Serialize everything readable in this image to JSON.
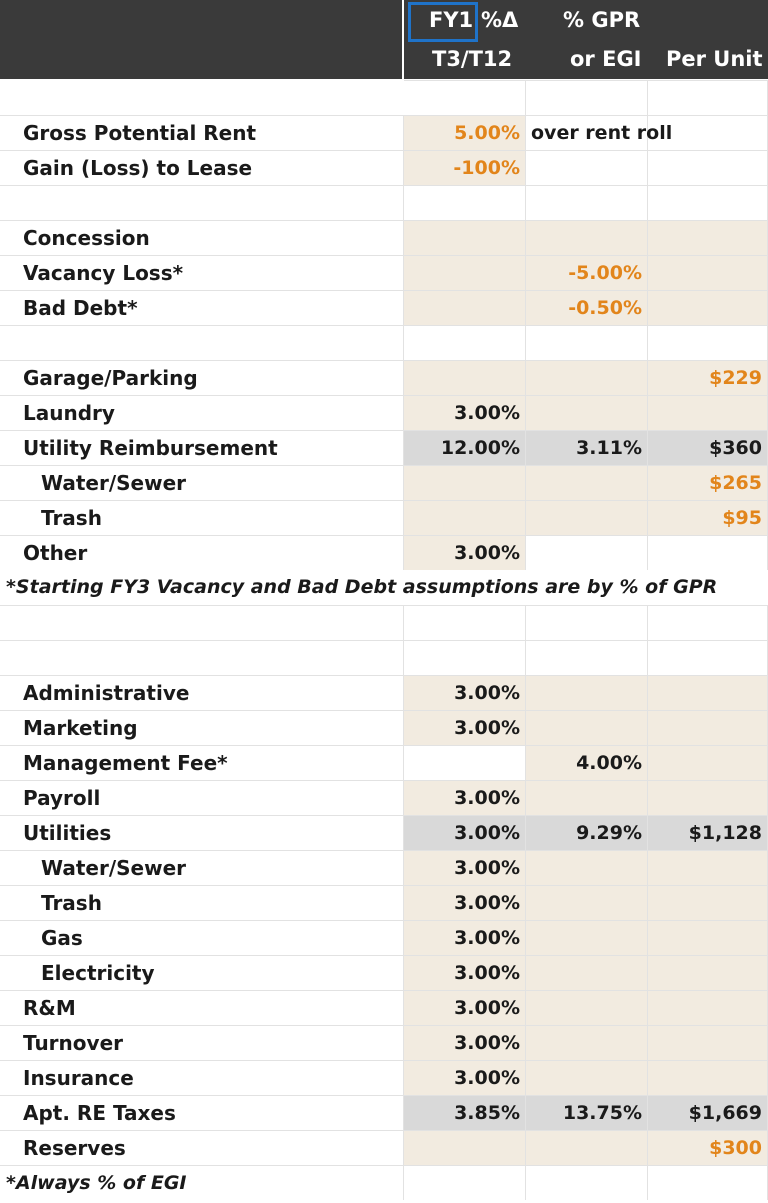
{
  "header": {
    "fy1": "FY1",
    "pct_delta": "%Δ",
    "t3_t12": "T3/T12",
    "pct_gpr": "% GPR",
    "or_egi": "or EGI",
    "per_unit": "Per Unit"
  },
  "income": {
    "gross_potential_rent": {
      "label": "Gross Potential Rent",
      "growth": "5.00%",
      "note": "over rent roll"
    },
    "gain_loss_to_lease": {
      "label": "Gain (Loss) to Lease",
      "growth": "-100%"
    },
    "concession": {
      "label": "Concession"
    },
    "vacancy_loss": {
      "label": "Vacancy Loss*",
      "pct": "-5.00%"
    },
    "bad_debt": {
      "label": "Bad Debt*",
      "pct": "-0.50%"
    },
    "garage_parking": {
      "label": "Garage/Parking",
      "per_unit": "$229"
    },
    "laundry": {
      "label": "Laundry",
      "growth": "3.00%"
    },
    "utility_reimbursement": {
      "label": "Utility Reimbursement",
      "growth": "12.00%",
      "pct": "3.11%",
      "per_unit": "$360"
    },
    "water_sewer": {
      "label": "Water/Sewer",
      "per_unit": "$265"
    },
    "trash": {
      "label": "Trash",
      "per_unit": "$95"
    },
    "other": {
      "label": "Other",
      "growth": "3.00%"
    },
    "footnote": "*Starting FY3 Vacancy and Bad Debt assumptions are by % of GPR"
  },
  "expenses": {
    "administrative": {
      "label": "Administrative",
      "growth": "3.00%"
    },
    "marketing": {
      "label": "Marketing",
      "growth": "3.00%"
    },
    "management_fee": {
      "label": "Management Fee*",
      "pct": "4.00%"
    },
    "payroll": {
      "label": "Payroll",
      "growth": "3.00%"
    },
    "utilities": {
      "label": "Utilities",
      "growth": "3.00%",
      "pct": "9.29%",
      "per_unit": "$1,128"
    },
    "water_sewer": {
      "label": "Water/Sewer",
      "growth": "3.00%"
    },
    "trash": {
      "label": "Trash",
      "growth": "3.00%"
    },
    "gas": {
      "label": "Gas",
      "growth": "3.00%"
    },
    "electricity": {
      "label": "Electricity",
      "growth": "3.00%"
    },
    "rm": {
      "label": "R&M",
      "growth": "3.00%"
    },
    "turnover": {
      "label": "Turnover",
      "growth": "3.00%"
    },
    "insurance": {
      "label": "Insurance",
      "growth": "3.00%"
    },
    "re_taxes": {
      "label": "Apt. RE Taxes",
      "growth": "3.85%",
      "pct": "13.75%",
      "per_unit": "$1,669"
    },
    "reserves": {
      "label": "Reserves",
      "per_unit": "$300"
    },
    "footnote": "*Always % of EGI"
  },
  "colors": {
    "header_bg": "#3a3a3a",
    "input_tan": "#f2ebe0",
    "calc_grey": "#d9d9d9",
    "orange": "#e2851b",
    "selection_blue": "#1f73c9"
  }
}
